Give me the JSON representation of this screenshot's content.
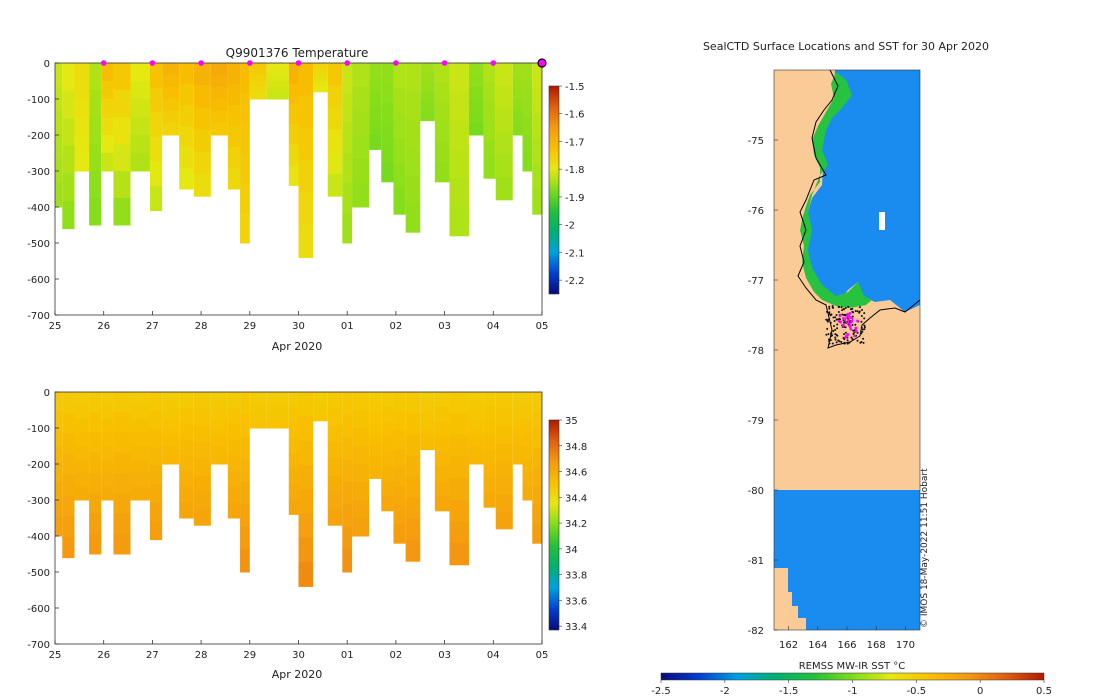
{
  "colors": {
    "land": "#fbcb97",
    "sea_sst": "#1a8cf0",
    "marker": "#ff00ff",
    "temp_scale": [
      "#0a0a78",
      "#0040d0",
      "#00a0e0",
      "#00b070",
      "#22c23a",
      "#7edc1c",
      "#e6e812",
      "#f8c000",
      "#f49a10",
      "#e06010",
      "#b01800"
    ],
    "sal_scale": [
      "#0a0a78",
      "#0040d0",
      "#00a0e0",
      "#00b070",
      "#22c23a",
      "#7edc1c",
      "#e6e812",
      "#f8c000",
      "#f49a10",
      "#e06010",
      "#b01800"
    ]
  },
  "chart_data": [
    {
      "type": "heatmap",
      "name": "temperature-section",
      "title": "Q9901376  Temperature",
      "xlabel": "Apr 2020",
      "ylabel": "",
      "x_ticks": [
        "25",
        "26",
        "27",
        "28",
        "29",
        "30",
        "01",
        "02",
        "03",
        "04",
        "05"
      ],
      "y_ticks": [
        "0",
        "-100",
        "-200",
        "-300",
        "-400",
        "-500",
        "-600",
        "-700"
      ],
      "ylim": [
        -700,
        0
      ],
      "colorbar": {
        "min": -2.25,
        "max": -1.5,
        "ticks": [
          "-1.5",
          "-1.6",
          "-1.7",
          "-1.8",
          "-1.9",
          "-2",
          "-2.1",
          "-2.2"
        ]
      },
      "profile_markers_days": [
        1,
        2,
        3,
        4,
        5,
        6,
        7,
        8,
        9,
        10
      ],
      "profiles": [
        {
          "day": 0.0,
          "depth": 400,
          "surface": -1.82,
          "deep": -1.85
        },
        {
          "day": 0.15,
          "depth": 460,
          "surface": -1.8,
          "deep": -1.86
        },
        {
          "day": 0.4,
          "depth": 300,
          "surface": -1.78,
          "deep": -1.8
        },
        {
          "day": 0.7,
          "depth": 450,
          "surface": -1.84,
          "deep": -1.87
        },
        {
          "day": 0.95,
          "depth": 300,
          "surface": -1.72,
          "deep": -1.82
        },
        {
          "day": 1.2,
          "depth": 450,
          "surface": -1.74,
          "deep": -1.86
        },
        {
          "day": 1.55,
          "depth": 300,
          "surface": -1.8,
          "deep": -1.84
        },
        {
          "day": 1.95,
          "depth": 410,
          "surface": -1.73,
          "deep": -1.82
        },
        {
          "day": 2.2,
          "depth": 200,
          "surface": -1.7,
          "deep": -1.76
        },
        {
          "day": 2.55,
          "depth": 350,
          "surface": -1.72,
          "deep": -1.8
        },
        {
          "day": 2.85,
          "depth": 370,
          "surface": -1.7,
          "deep": -1.78
        },
        {
          "day": 3.2,
          "depth": 200,
          "surface": -1.68,
          "deep": -1.74
        },
        {
          "day": 3.55,
          "depth": 350,
          "surface": -1.7,
          "deep": -1.77
        },
        {
          "day": 3.8,
          "depth": 500,
          "surface": -1.72,
          "deep": -1.76
        },
        {
          "day": 4.0,
          "depth": 100,
          "surface": -1.74,
          "deep": -1.78
        },
        {
          "day": 4.35,
          "depth": 100,
          "surface": -1.8,
          "deep": -1.82
        },
        {
          "day": 4.8,
          "depth": 340,
          "surface": -1.7,
          "deep": -1.79
        },
        {
          "day": 5.0,
          "depth": 540,
          "surface": -1.72,
          "deep": -1.78
        },
        {
          "day": 5.3,
          "depth": 80,
          "surface": -1.76,
          "deep": -1.8
        },
        {
          "day": 5.6,
          "depth": 370,
          "surface": -1.74,
          "deep": -1.82
        },
        {
          "day": 5.9,
          "depth": 500,
          "surface": -1.82,
          "deep": -1.85
        },
        {
          "day": 6.1,
          "depth": 400,
          "surface": -1.84,
          "deep": -1.86
        },
        {
          "day": 6.45,
          "depth": 240,
          "surface": -1.86,
          "deep": -1.88
        },
        {
          "day": 6.7,
          "depth": 330,
          "surface": -1.86,
          "deep": -1.88
        },
        {
          "day": 6.95,
          "depth": 420,
          "surface": -1.84,
          "deep": -1.87
        },
        {
          "day": 7.2,
          "depth": 470,
          "surface": -1.84,
          "deep": -1.86
        },
        {
          "day": 7.5,
          "depth": 160,
          "surface": -1.85,
          "deep": -1.87
        },
        {
          "day": 7.8,
          "depth": 330,
          "surface": -1.84,
          "deep": -1.86
        },
        {
          "day": 8.1,
          "depth": 480,
          "surface": -1.82,
          "deep": -1.84
        },
        {
          "day": 8.5,
          "depth": 200,
          "surface": -1.86,
          "deep": -1.88
        },
        {
          "day": 8.8,
          "depth": 320,
          "surface": -1.84,
          "deep": -1.86
        },
        {
          "day": 9.05,
          "depth": 380,
          "surface": -1.82,
          "deep": -1.85
        },
        {
          "day": 9.4,
          "depth": 200,
          "surface": -1.85,
          "deep": -1.87
        },
        {
          "day": 9.6,
          "depth": 300,
          "surface": -1.85,
          "deep": -1.87
        },
        {
          "day": 9.8,
          "depth": 420,
          "surface": -1.82,
          "deep": -1.85
        },
        {
          "day": 10.0,
          "depth": 490,
          "surface": -1.83,
          "deep": -1.85
        }
      ]
    },
    {
      "type": "heatmap",
      "name": "salinity-section",
      "title": "",
      "xlabel": "Apr 2020",
      "ylabel": "",
      "x_ticks": [
        "25",
        "26",
        "27",
        "28",
        "29",
        "30",
        "01",
        "02",
        "03",
        "04",
        "05"
      ],
      "y_ticks": [
        "0",
        "-100",
        "-200",
        "-300",
        "-400",
        "-500",
        "-600",
        "-700"
      ],
      "ylim": [
        -700,
        0
      ],
      "colorbar": {
        "min": 33.37,
        "max": 35.0,
        "ticks": [
          "35",
          "34.8",
          "34.6",
          "34.4",
          "34.2",
          "34",
          "33.8",
          "33.6",
          "33.4"
        ]
      },
      "surface_value": 34.45,
      "deep_value": 34.72
    },
    {
      "type": "map",
      "name": "sst-map",
      "title": "SealCTD Surface Locations and SST for 30 Apr 2020",
      "lat_ticks": [
        "-75",
        "-76",
        "-77",
        "-78",
        "-79",
        "-80",
        "-81",
        "-82"
      ],
      "lon_ticks": [
        "162",
        "164",
        "166",
        "168",
        "170"
      ],
      "lat_range": [
        -82,
        -74
      ],
      "lon_range": [
        161,
        171
      ],
      "colorbar": {
        "label": "REMSS MW-IR SST °C",
        "min": -2.5,
        "max": 0.5,
        "ticks": [
          "-2.5",
          "-2",
          "-1.5",
          "-1",
          "-0.5",
          "0",
          "0.5"
        ]
      },
      "credit": "© IMOS 18-May-2022 11:51 Hobart"
    }
  ]
}
